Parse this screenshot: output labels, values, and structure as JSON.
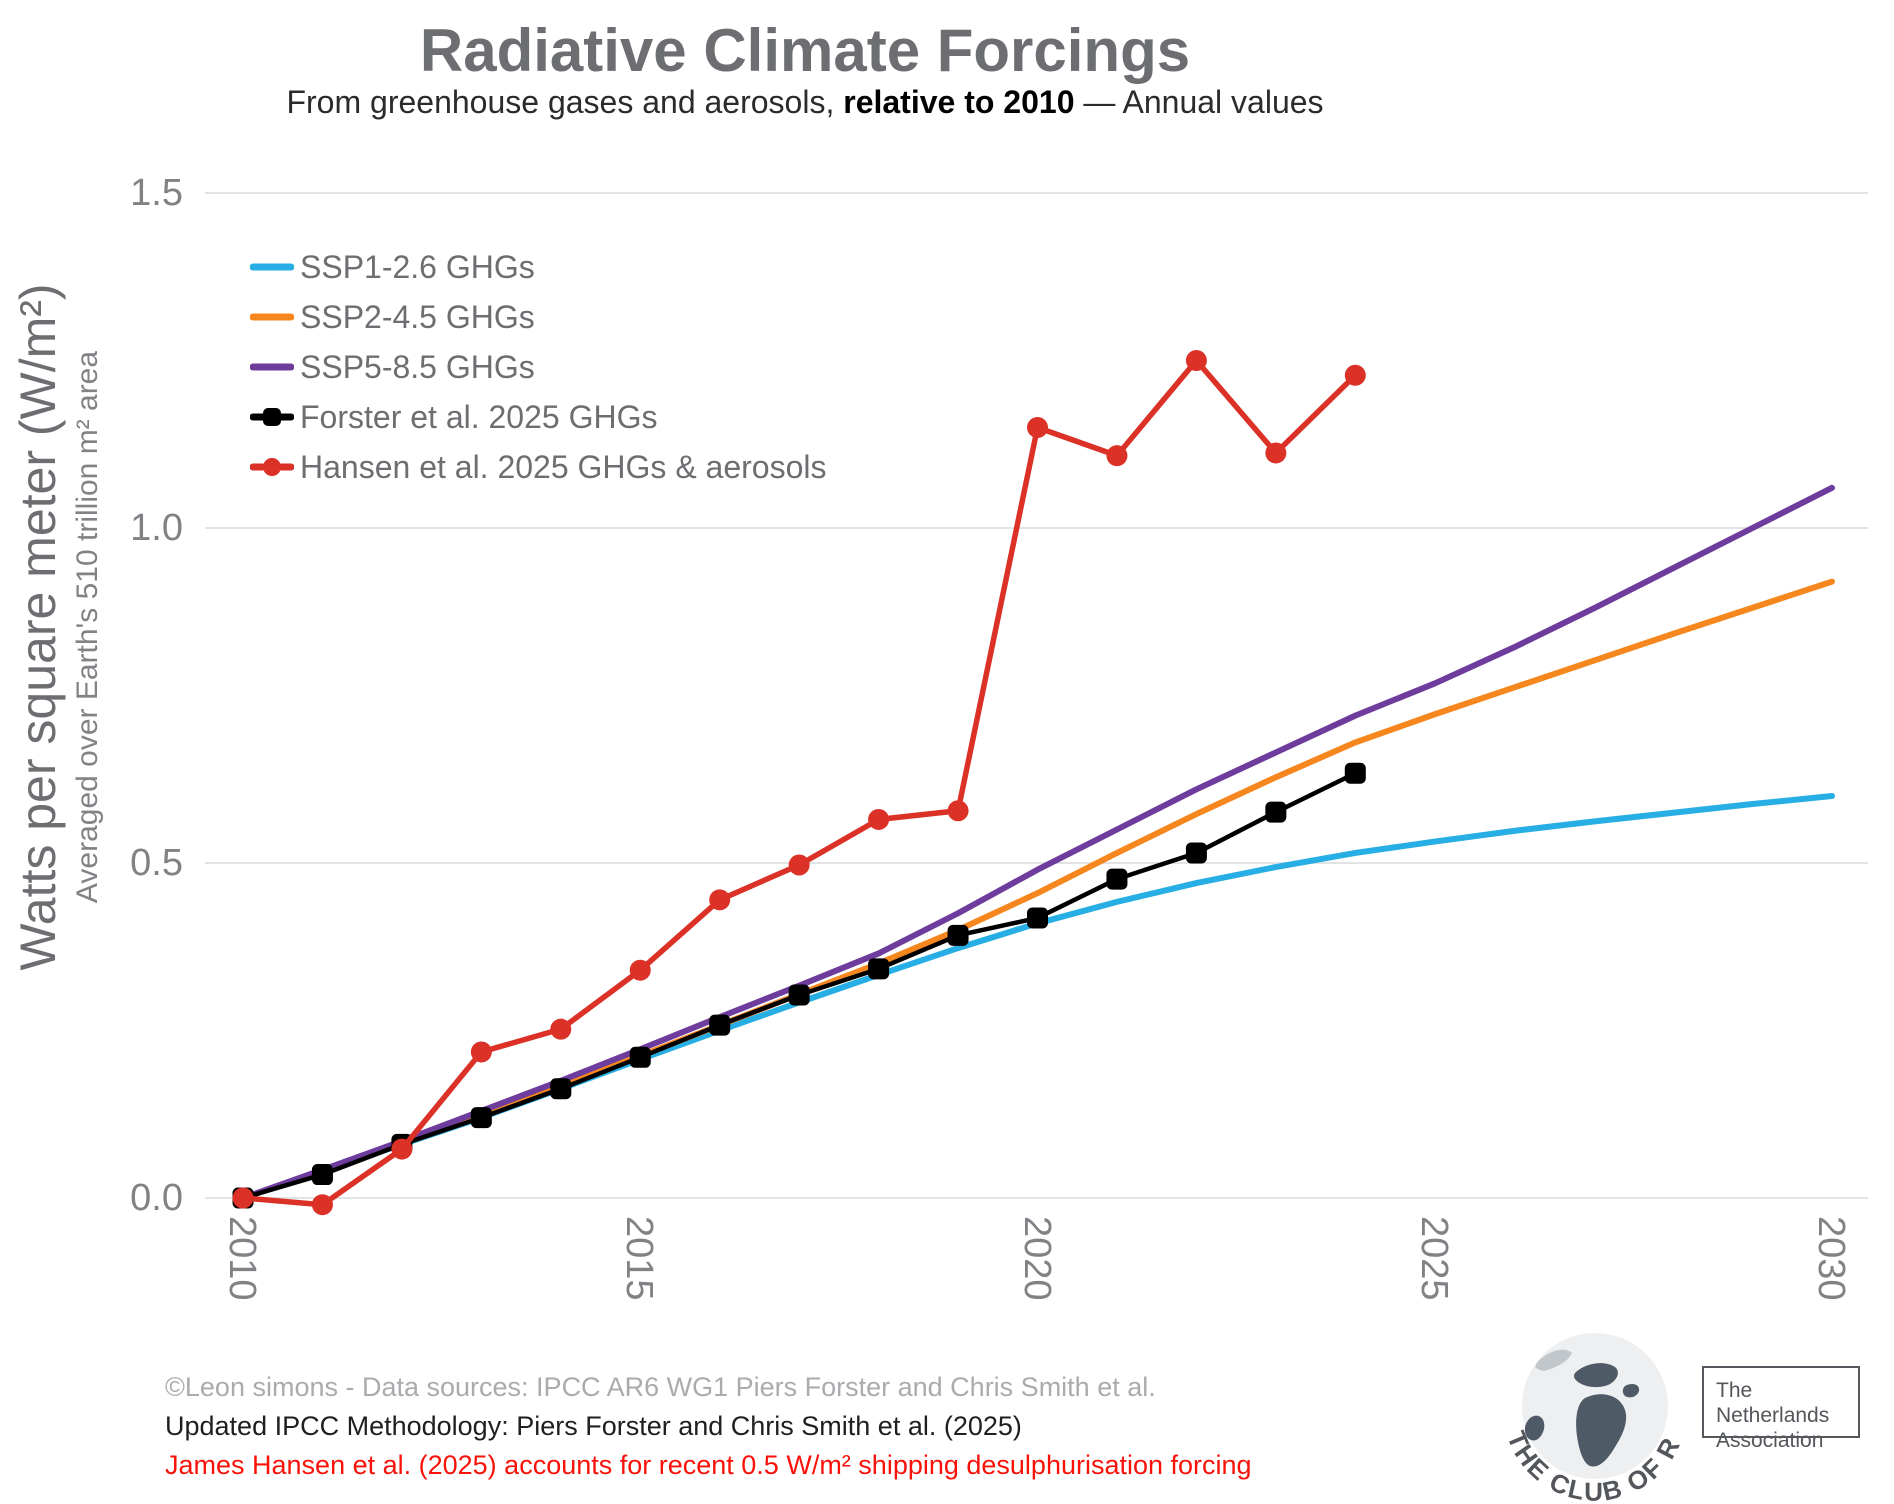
{
  "title": "Radiative Climate Forcings",
  "subtitle": {
    "prefix": "From greenhouse gases and aerosols, ",
    "bold": "relative to 2010",
    "suffix": " — Annual values"
  },
  "y_axis": {
    "label_main": "Watts per square meter (W/m²)",
    "label_sub": "Averaged over Earth's 510 trillion m² area"
  },
  "footer": {
    "line1": "©Leon simons - Data sources: IPCC AR6 WG1 Piers Forster and Chris Smith et al.",
    "line2": "Updated IPCC Methodology: Piers Forster and Chris Smith et al. (2025)",
    "line3": "James Hansen et al. (2025) accounts for recent 0.5 W/m² shipping desulphurisation forcing",
    "line1_color": "#A9ABAE",
    "line2_color": "#1F1F1F",
    "line3_color": "#F8120A"
  },
  "logo": {
    "curved_text": "THE CLUB OF ROME",
    "box_line1": "The Netherlands",
    "box_line2": "Association"
  },
  "chart_data": {
    "type": "line",
    "title": "Radiative Climate Forcings",
    "subtitle": "From greenhouse gases and aerosols, relative to 2010 — Annual values",
    "xlabel": "",
    "ylabel": "Watts per square meter (W/m²)",
    "ylabel_secondary": "Averaged over Earth's 510 trillion m² area",
    "xlim": [
      2010,
      2030.5
    ],
    "ylim": [
      -0.07,
      1.57
    ],
    "grid": "horizontal-only",
    "legend_position": "top-left",
    "x_tick_values": [
      2010,
      2015,
      2020,
      2025,
      2030
    ],
    "x_tick_labels": [
      "2010",
      "2015",
      "2020",
      "2025",
      "2030"
    ],
    "y_tick_values": [
      0,
      0.5,
      1.0,
      1.5
    ],
    "y_tick_labels": [
      "0.0",
      "0.5",
      "1.0",
      "1.5"
    ],
    "gridline_color": "#E2E3E4",
    "series": [
      {
        "name": "SSP1-2.6 GHGs",
        "color": "#27AEE4",
        "marker": "none",
        "line_width": 6,
        "years": [
          2010,
          2011,
          2012,
          2013,
          2014,
          2015,
          2016,
          2017,
          2018,
          2019,
          2020,
          2021,
          2022,
          2023,
          2024,
          2025,
          2026,
          2027,
          2028,
          2029,
          2030
        ],
        "values": [
          0.0,
          0.04,
          0.08,
          0.12,
          0.163,
          0.207,
          0.25,
          0.292,
          0.333,
          0.373,
          0.41,
          0.442,
          0.47,
          0.494,
          0.515,
          0.532,
          0.548,
          0.562,
          0.575,
          0.588,
          0.6
        ]
      },
      {
        "name": "SSP2-4.5 GHGs",
        "color": "#F6871F",
        "marker": "none",
        "line_width": 6,
        "years": [
          2010,
          2011,
          2012,
          2013,
          2014,
          2015,
          2016,
          2017,
          2018,
          2019,
          2020,
          2021,
          2022,
          2023,
          2024,
          2025,
          2026,
          2027,
          2028,
          2029,
          2030
        ],
        "values": [
          0.0,
          0.04,
          0.082,
          0.125,
          0.168,
          0.212,
          0.258,
          0.304,
          0.35,
          0.4,
          0.455,
          0.515,
          0.573,
          0.628,
          0.68,
          0.722,
          0.762,
          0.802,
          0.842,
          0.881,
          0.92
        ]
      },
      {
        "name": "SSP5-8.5 GHGs",
        "color": "#6E3C9C",
        "marker": "none",
        "line_width": 6,
        "years": [
          2010,
          2011,
          2012,
          2013,
          2014,
          2015,
          2016,
          2017,
          2018,
          2019,
          2020,
          2021,
          2022,
          2023,
          2024,
          2025,
          2026,
          2027,
          2028,
          2029,
          2030
        ],
        "values": [
          0.0,
          0.042,
          0.085,
          0.13,
          0.175,
          0.222,
          0.27,
          0.317,
          0.365,
          0.425,
          0.49,
          0.55,
          0.61,
          0.665,
          0.72,
          0.768,
          0.822,
          0.88,
          0.94,
          1.0,
          1.06
        ]
      },
      {
        "name": "Forster et al. 2025 GHGs",
        "color": "#000000",
        "marker": "square",
        "line_width": 4.5,
        "years": [
          2010,
          2011,
          2012,
          2013,
          2014,
          2015,
          2016,
          2017,
          2018,
          2019,
          2020,
          2021,
          2022,
          2023,
          2024
        ],
        "values": [
          0.0,
          0.035,
          0.08,
          0.12,
          0.163,
          0.21,
          0.258,
          0.303,
          0.342,
          0.392,
          0.418,
          0.476,
          0.515,
          0.576,
          0.634
        ]
      },
      {
        "name": "Hansen et al. 2025 GHGs & aerosols",
        "color": "#DB3127",
        "marker": "circle",
        "line_width": 5.5,
        "years": [
          2010,
          2011,
          2012,
          2013,
          2014,
          2015,
          2016,
          2017,
          2018,
          2019,
          2020,
          2021,
          2022,
          2023,
          2024
        ],
        "values": [
          0.0,
          -0.01,
          0.073,
          0.218,
          0.252,
          0.34,
          0.445,
          0.497,
          0.565,
          0.578,
          1.15,
          1.108,
          1.25,
          1.112,
          1.228
        ]
      }
    ]
  }
}
